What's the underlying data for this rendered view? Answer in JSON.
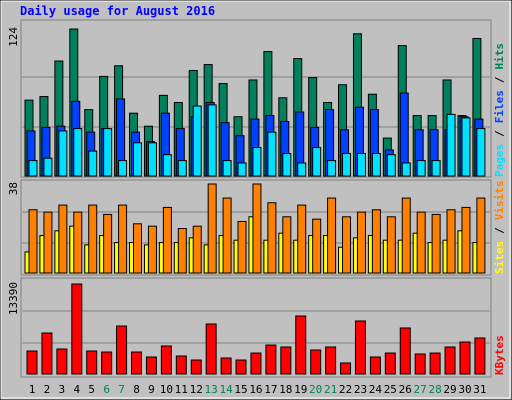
{
  "chart_data": [
    {
      "type": "bar",
      "title": "Daily usage for August 2016",
      "categories": [
        "1",
        "2",
        "3",
        "4",
        "5",
        "6",
        "7",
        "8",
        "9",
        "10",
        "11",
        "12",
        "13",
        "14",
        "15",
        "16",
        "17",
        "18",
        "19",
        "20",
        "21",
        "22",
        "23",
        "24",
        "25",
        "26",
        "27",
        "28",
        "29",
        "30",
        "31"
      ],
      "category_colors": [
        "#000000",
        "#000000",
        "#000000",
        "#000000",
        "#000000",
        "#00805C",
        "#00805C",
        "#000000",
        "#000000",
        "#000000",
        "#000000",
        "#000000",
        "#00805C",
        "#00805C",
        "#000000",
        "#000000",
        "#000000",
        "#000000",
        "#000000",
        "#00805C",
        "#00805C",
        "#000000",
        "#000000",
        "#000000",
        "#000000",
        "#000000",
        "#00805C",
        "#00805C",
        "#000000",
        "#000000",
        "#000000"
      ],
      "legend_separator": "/",
      "ylim": [
        0,
        124
      ],
      "yticks": [
        124
      ],
      "series": [
        {
          "name": "Pages",
          "color": "#00E0FF",
          "values": [
            13,
            15,
            38,
            40,
            21,
            40,
            13,
            28,
            28,
            18,
            13,
            59,
            60,
            13,
            11,
            24,
            37,
            19,
            11,
            24,
            13,
            19,
            19,
            19,
            18,
            11,
            13,
            13,
            52,
            49,
            40
          ]
        },
        {
          "name": "Files",
          "color": "#0040FF",
          "values": [
            38,
            41,
            42,
            63,
            37,
            40,
            65,
            37,
            29,
            53,
            40,
            50,
            62,
            45,
            34,
            48,
            51,
            46,
            54,
            41,
            56,
            39,
            58,
            56,
            22,
            70,
            39,
            39,
            39,
            50,
            48
          ]
        },
        {
          "name": "Hits",
          "color": "#00805C",
          "values": [
            64,
            67,
            97,
            124,
            56,
            84,
            93,
            53,
            42,
            68,
            62,
            89,
            94,
            78,
            50,
            81,
            105,
            66,
            99,
            83,
            62,
            77,
            120,
            69,
            32,
            110,
            51,
            51,
            81,
            51,
            116
          ]
        }
      ]
    },
    {
      "type": "bar",
      "ylim": [
        0,
        38
      ],
      "yticks": [
        38
      ],
      "series": [
        {
          "name": "Sites",
          "color": "#FFFF00",
          "values": [
            9,
            16,
            18,
            20,
            12,
            16,
            13,
            13,
            12,
            13,
            13,
            15,
            12,
            16,
            14,
            24,
            14,
            17,
            14,
            16,
            16,
            11,
            15,
            16,
            14,
            14,
            17,
            13,
            14,
            18,
            13
          ]
        },
        {
          "name": "Visits",
          "color": "#FF8000",
          "values": [
            27,
            26,
            29,
            26,
            29,
            25,
            29,
            21,
            20,
            28,
            19,
            20,
            38,
            32,
            22,
            38,
            30,
            24,
            29,
            23,
            32,
            24,
            26,
            27,
            24,
            32,
            26,
            25,
            27,
            28,
            32
          ]
        }
      ]
    },
    {
      "type": "bar",
      "ylim": [
        0,
        13390
      ],
      "yticks": [
        13390
      ],
      "series": [
        {
          "name": "KBytes",
          "color": "#FF0000",
          "values": [
            3420,
            6100,
            3720,
            13390,
            3420,
            3270,
            7140,
            3270,
            2530,
            4170,
            2680,
            2080,
            7440,
            2380,
            2080,
            3120,
            4310,
            4020,
            8630,
            3570,
            4020,
            1640,
            7890,
            2530,
            3120,
            6850,
            2980,
            3120,
            4020,
            4760,
            5360
          ]
        }
      ]
    }
  ]
}
